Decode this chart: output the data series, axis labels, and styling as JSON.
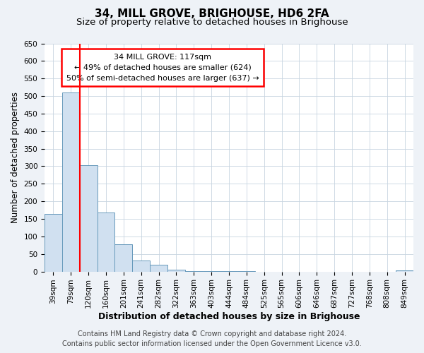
{
  "title": "34, MILL GROVE, BRIGHOUSE, HD6 2FA",
  "subtitle": "Size of property relative to detached houses in Brighouse",
  "xlabel": "Distribution of detached houses by size in Brighouse",
  "ylabel": "Number of detached properties",
  "categories": [
    "39sqm",
    "79sqm",
    "120sqm",
    "160sqm",
    "201sqm",
    "241sqm",
    "282sqm",
    "322sqm",
    "363sqm",
    "403sqm",
    "444sqm",
    "484sqm",
    "525sqm",
    "565sqm",
    "606sqm",
    "646sqm",
    "687sqm",
    "727sqm",
    "768sqm",
    "808sqm",
    "849sqm"
  ],
  "values": [
    165,
    510,
    302,
    168,
    78,
    32,
    20,
    5,
    2,
    2,
    1,
    1,
    0,
    0,
    0,
    0,
    0,
    0,
    0,
    0,
    4
  ],
  "bar_color": "#d0e0f0",
  "bar_edge_color": "#6699bb",
  "red_line_index": 2,
  "annotation_title": "34 MILL GROVE: 117sqm",
  "annotation_line1": "← 49% of detached houses are smaller (624)",
  "annotation_line2": "50% of semi-detached houses are larger (637) →",
  "ylim": [
    0,
    650
  ],
  "yticks": [
    0,
    50,
    100,
    150,
    200,
    250,
    300,
    350,
    400,
    450,
    500,
    550,
    600,
    650
  ],
  "footer_line1": "Contains HM Land Registry data © Crown copyright and database right 2024.",
  "footer_line2": "Contains public sector information licensed under the Open Government Licence v3.0.",
  "bg_color": "#eef2f7",
  "plot_bg_color": "#ffffff",
  "grid_color": "#c8d4e0",
  "title_fontsize": 11,
  "subtitle_fontsize": 9.5,
  "tick_fontsize": 7.5,
  "ylabel_fontsize": 8.5,
  "xlabel_fontsize": 9,
  "annotation_fontsize": 8,
  "footer_fontsize": 7
}
